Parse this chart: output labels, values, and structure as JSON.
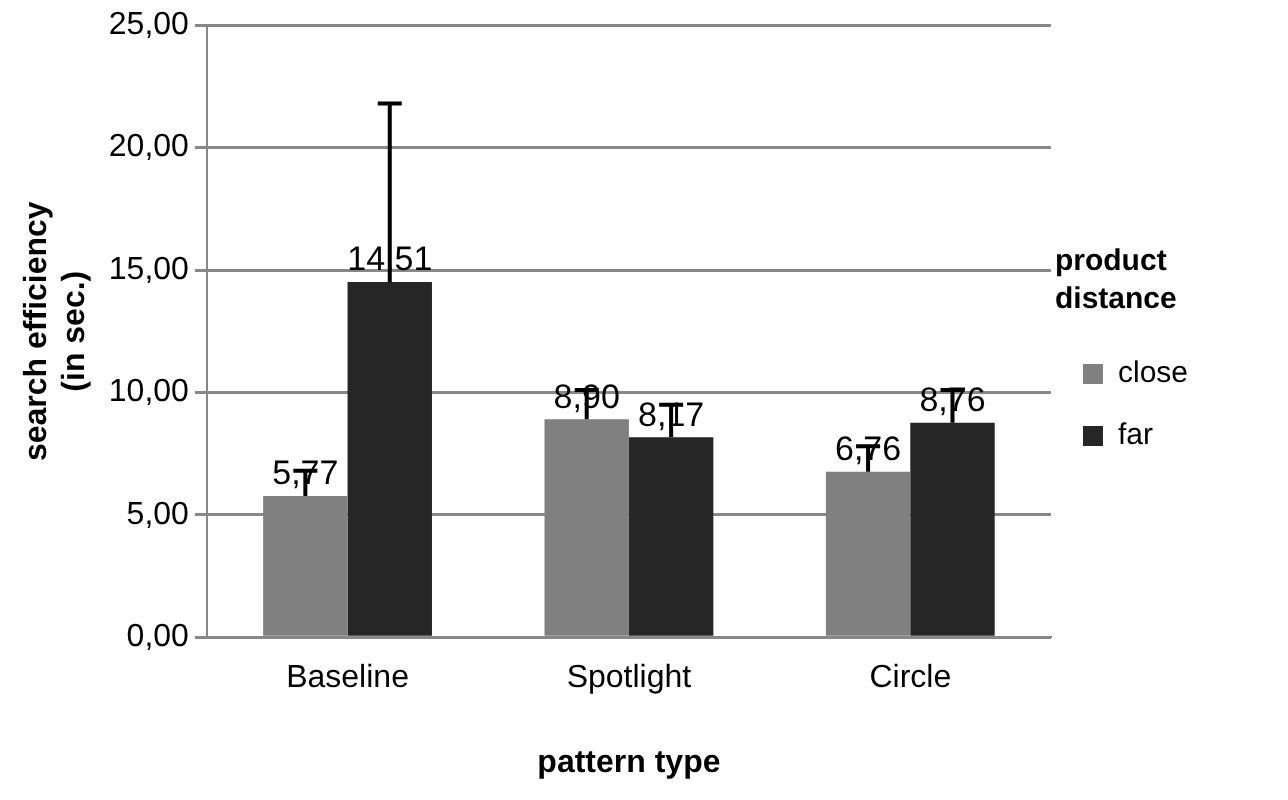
{
  "chart_data": {
    "type": "bar",
    "xlabel": "pattern type",
    "ylabel": "search efficiency (in sec.)",
    "legend_title": "product distance",
    "categories": [
      "Baseline",
      "Spotlight",
      "Circle"
    ],
    "series": [
      {
        "name": "close",
        "color": "#808080",
        "values": [
          5.77,
          8.9,
          6.76
        ],
        "value_labels": [
          "5,77",
          "8,90",
          "6,76"
        ],
        "errors": [
          [
            5.77,
            6.8
          ],
          [
            8.9,
            10.1
          ],
          [
            6.76,
            7.8
          ]
        ]
      },
      {
        "name": "far",
        "color": "#262626",
        "values": [
          14.51,
          8.17,
          8.76
        ],
        "value_labels": [
          "14,51",
          "8,17",
          "8,76"
        ],
        "errors": [
          [
            14.51,
            21.8
          ],
          [
            8.17,
            9.5
          ],
          [
            8.76,
            10.1
          ]
        ]
      }
    ],
    "ylim": [
      0,
      25
    ],
    "yticks": [
      {
        "value": 0,
        "label": "0,00"
      },
      {
        "value": 5,
        "label": "5,00"
      },
      {
        "value": 10,
        "label": "10,00"
      },
      {
        "value": 15,
        "label": "15,00"
      },
      {
        "value": 20,
        "label": "20,00"
      },
      {
        "value": 25,
        "label": "25,00"
      }
    ],
    "grid": "y",
    "legend": "right"
  }
}
